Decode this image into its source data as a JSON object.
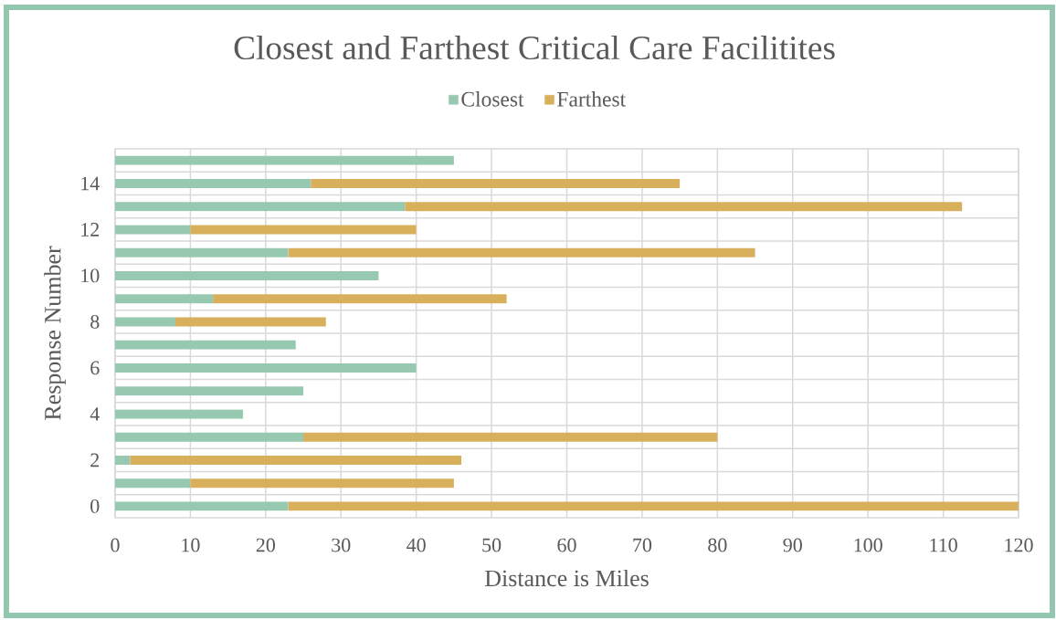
{
  "chart_data": {
    "type": "bar",
    "orientation": "horizontal",
    "stacked": true,
    "title": "Closest and Farthest Critical Care Facilitites",
    "xlabel": "Distance is Miles",
    "ylabel": "Response Number",
    "categories": [
      null,
      "14",
      null,
      "12",
      null,
      "10",
      null,
      "8",
      null,
      "6",
      null,
      "4",
      null,
      "2",
      null,
      "0"
    ],
    "series": [
      {
        "name": "Closest",
        "color": "#97c8b0",
        "values": [
          45,
          26,
          38.5,
          10,
          23,
          35,
          13,
          8,
          24,
          40,
          25,
          17,
          25,
          2,
          10,
          23
        ]
      },
      {
        "name": "Farthest",
        "color": "#d8b05c",
        "values": [
          null,
          49,
          74,
          30,
          62,
          null,
          39,
          20,
          null,
          null,
          null,
          null,
          55,
          44,
          35,
          97
        ]
      }
    ],
    "xlim": [
      0,
      120
    ],
    "xticks": [
      0,
      10,
      20,
      30,
      40,
      50,
      60,
      70,
      80,
      90,
      100,
      110,
      120
    ],
    "grid": true,
    "legend": "top"
  }
}
